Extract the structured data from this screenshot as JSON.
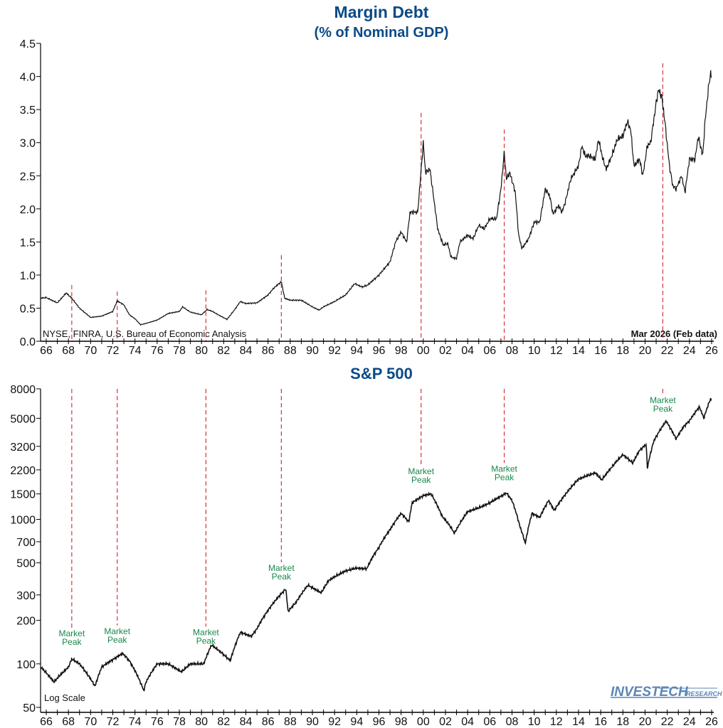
{
  "chart_data": [
    {
      "type": "line",
      "title": "Margin Debt",
      "subtitle": "(% of Nominal GDP)",
      "ylim": [
        0,
        4.5
      ],
      "yticks": [
        "0.0",
        "0.5",
        "1.0",
        "1.5",
        "2.0",
        "2.5",
        "3.0",
        "3.5",
        "4.0",
        "4.5"
      ],
      "xlim": [
        1965.5,
        2026
      ],
      "xticks": [
        "66",
        "68",
        "70",
        "72",
        "74",
        "76",
        "78",
        "80",
        "82",
        "84",
        "86",
        "88",
        "90",
        "92",
        "94",
        "96",
        "98",
        "00",
        "02",
        "04",
        "06",
        "08",
        "10",
        "12",
        "14",
        "16",
        "18",
        "20",
        "22",
        "24",
        "26"
      ],
      "grid": false,
      "source": "NYSE, FINRA, U.S. Bureau of Economic Analysis",
      "date_note": "Mar 2026 (Feb data)",
      "line_color": "#111111",
      "x": [
        1965.5,
        1966,
        1967,
        1967.8,
        1968.3,
        1969,
        1970,
        1971,
        1972,
        1972.4,
        1973,
        1973.5,
        1974,
        1974.5,
        1975,
        1976,
        1977,
        1978,
        1978.3,
        1979,
        1980,
        1980.5,
        1981,
        1981.5,
        1982.3,
        1983,
        1983.5,
        1984,
        1985,
        1986,
        1986.5,
        1987.2,
        1987.5,
        1988,
        1989,
        1990,
        1990.6,
        1991,
        1992,
        1993,
        1993.8,
        1994.5,
        1995,
        1996,
        1997,
        1997.5,
        1998,
        1998.5,
        1998.8,
        1999.5,
        2000.0,
        2000.2,
        2000.6,
        2001.3,
        2001.8,
        2002.2,
        2002.5,
        2003,
        2003.3,
        2004,
        2004.5,
        2005,
        2005.5,
        2006,
        2006.6,
        2007.0,
        2007.3,
        2007.5,
        2007.8,
        2008.3,
        2008.6,
        2008.9,
        2009.5,
        2010,
        2010.5,
        2011,
        2011.4,
        2011.7,
        2012.2,
        2012.5,
        2012.8,
        2013.3,
        2014,
        2014.3,
        2014.6,
        2015,
        2015.5,
        2015.8,
        2016.2,
        2016.5,
        2017,
        2017.5,
        2018,
        2018.4,
        2018.7,
        2019,
        2019.5,
        2019.8,
        2020.2,
        2020.5,
        2021,
        2021.2,
        2021.5,
        2021.8,
        2022.2,
        2022.5,
        2022.8,
        2023.3,
        2023.6,
        2024,
        2024.5,
        2024.8,
        2025.2,
        2025.4,
        2025.7,
        2025.9,
        2026.0
      ],
      "values": [
        0.65,
        0.66,
        0.58,
        0.73,
        0.65,
        0.5,
        0.36,
        0.38,
        0.45,
        0.61,
        0.55,
        0.4,
        0.34,
        0.25,
        0.27,
        0.32,
        0.42,
        0.45,
        0.52,
        0.44,
        0.4,
        0.48,
        0.45,
        0.4,
        0.33,
        0.48,
        0.6,
        0.57,
        0.58,
        0.7,
        0.8,
        0.9,
        0.65,
        0.62,
        0.62,
        0.52,
        0.47,
        0.52,
        0.6,
        0.7,
        0.87,
        0.82,
        0.85,
        1.0,
        1.2,
        1.5,
        1.65,
        1.5,
        1.95,
        1.95,
        3.0,
        2.55,
        2.6,
        1.7,
        1.45,
        1.48,
        1.27,
        1.25,
        1.5,
        1.6,
        1.55,
        1.75,
        1.7,
        1.85,
        1.85,
        2.3,
        2.85,
        2.45,
        2.55,
        2.25,
        1.6,
        1.4,
        1.55,
        1.8,
        1.8,
        2.3,
        2.2,
        1.92,
        2.05,
        1.95,
        2.1,
        2.45,
        2.65,
        2.95,
        2.8,
        2.8,
        2.75,
        3.05,
        2.75,
        2.6,
        2.8,
        3.05,
        3.1,
        3.32,
        3.2,
        2.65,
        2.75,
        2.5,
        2.95,
        3.0,
        3.6,
        3.8,
        3.7,
        3.3,
        2.65,
        2.35,
        2.3,
        2.5,
        2.25,
        2.75,
        2.75,
        3.1,
        2.8,
        3.3,
        3.8,
        4.05,
        4.0
      ],
      "peak_markers": {
        "years": [
          1968.3,
          1972.4,
          1980.4,
          1987.2,
          1999.8,
          2007.3,
          2021.6
        ],
        "tops": [
          0.85,
          0.75,
          0.77,
          1.3,
          3.45,
          3.2,
          4.2
        ],
        "color": "#d9333a"
      }
    },
    {
      "type": "line",
      "title": "S&P 500",
      "yscale": "log",
      "ylim": [
        50,
        8000
      ],
      "yticks": [
        "50",
        "100",
        "200",
        "300",
        "500",
        "700",
        "1000",
        "1500",
        "2200",
        "3200",
        "5000",
        "8000"
      ],
      "xlim": [
        1965.5,
        2026
      ],
      "xticks": [
        "66",
        "68",
        "70",
        "72",
        "74",
        "76",
        "78",
        "80",
        "82",
        "84",
        "86",
        "88",
        "90",
        "92",
        "94",
        "96",
        "98",
        "00",
        "02",
        "04",
        "06",
        "08",
        "10",
        "12",
        "14",
        "16",
        "18",
        "20",
        "22",
        "24",
        "26"
      ],
      "grid": false,
      "scale_note": "Log Scale",
      "line_color": "#111111",
      "x": [
        1965.5,
        1966.7,
        1968,
        1968.3,
        1969,
        1970.4,
        1971,
        1972.9,
        1973.5,
        1974.8,
        1975,
        1976,
        1977,
        1978.2,
        1979,
        1980.2,
        1980.9,
        1981.5,
        1982.6,
        1983.5,
        1984.5,
        1985,
        1986,
        1987.6,
        1987.8,
        1988.5,
        1989.6,
        1990.8,
        1991.5,
        1993,
        1994,
        1994.9,
        1995.5,
        1996,
        1997,
        1998,
        1998.7,
        1999,
        2000.0,
        2000.7,
        2001.7,
        2002.5,
        2002.8,
        2003.5,
        2004,
        2005,
        2006,
        2007.5,
        2008,
        2008.7,
        2009.2,
        2009.8,
        2010.5,
        2011.3,
        2011.8,
        2013,
        2014,
        2015.5,
        2016.1,
        2017,
        2018,
        2018.9,
        2019.5,
        2020.1,
        2020.2,
        2020.8,
        2021.9,
        2022.8,
        2023.5,
        2024,
        2024.9,
        2025.3,
        2025.9,
        2026.0
      ],
      "values": [
        95,
        75,
        95,
        108,
        100,
        70,
        95,
        118,
        105,
        65,
        75,
        100,
        100,
        88,
        100,
        100,
        135,
        125,
        105,
        165,
        155,
        175,
        235,
        330,
        230,
        265,
        350,
        310,
        380,
        440,
        460,
        455,
        560,
        640,
        850,
        1100,
        960,
        1300,
        1460,
        1500,
        1050,
        880,
        800,
        990,
        1130,
        1200,
        1300,
        1520,
        1350,
        900,
        680,
        1100,
        1030,
        1350,
        1150,
        1550,
        1900,
        2100,
        1870,
        2300,
        2800,
        2450,
        3000,
        3300,
        2250,
        3500,
        4780,
        3600,
        4400,
        4800,
        6000,
        5000,
        6800,
        6700
      ],
      "annotations": [
        {
          "line1": "Market",
          "line2": "Peak",
          "year": 1968.3
        },
        {
          "line1": "Market",
          "line2": "Peak",
          "year": 1972.4
        },
        {
          "line1": "Market",
          "line2": "Peak",
          "year": 1980.4
        },
        {
          "line1": "Market",
          "line2": "Peak",
          "year": 1987.2
        },
        {
          "line1": "Market",
          "line2": "Peak",
          "year": 1999.8
        },
        {
          "line1": "Market",
          "line2": "Peak",
          "year": 2007.3
        },
        {
          "line1": "Market",
          "line2": "Peak",
          "year": 2021.6
        }
      ],
      "annotation_color": "#17874a"
    }
  ],
  "logo": {
    "main": "INVESTECH",
    "sub": "RESEARCH",
    "color": "#5b86b8"
  }
}
